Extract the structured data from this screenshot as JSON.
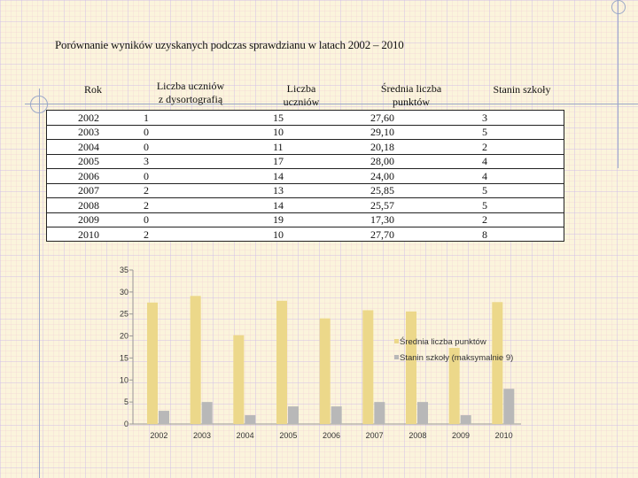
{
  "title": "Porównanie wyników uzyskanych podczas sprawdzianu w latach 2002 – 2010",
  "table": {
    "headers": {
      "rok": "Rok",
      "dysortografia_line1": "Liczba uczniów",
      "dysortografia_line2": "z dysortografią",
      "liczba_line1": "Liczba",
      "liczba_line2": "uczniów",
      "srednia_line1": "Średnia liczba",
      "srednia_line2": "punktów",
      "stanin": "Stanin szkoły"
    },
    "rows": [
      {
        "rok": "2002",
        "dys": "1",
        "liczba": "15",
        "srednia": "27,60",
        "stanin": "3"
      },
      {
        "rok": "2003",
        "dys": "0",
        "liczba": "10",
        "srednia": "29,10",
        "stanin": "5"
      },
      {
        "rok": "2004",
        "dys": "0",
        "liczba": "11",
        "srednia": "20,18",
        "stanin": "2"
      },
      {
        "rok": "2005",
        "dys": "3",
        "liczba": "17",
        "srednia": "28,00",
        "stanin": "4"
      },
      {
        "rok": "2006",
        "dys": "0",
        "liczba": "14",
        "srednia": "24,00",
        "stanin": "4"
      },
      {
        "rok": "2007",
        "dys": "2",
        "liczba": "13",
        "srednia": "25,85",
        "stanin": "5"
      },
      {
        "rok": "2008",
        "dys": "2",
        "liczba": "14",
        "srednia": "25,57",
        "stanin": "5"
      },
      {
        "rok": "2009",
        "dys": "0",
        "liczba": "19",
        "srednia": "17,30",
        "stanin": "2"
      },
      {
        "rok": "2010",
        "dys": "2",
        "liczba": "10",
        "srednia": "27,70",
        "stanin": "8"
      }
    ]
  },
  "chart_data": {
    "type": "bar",
    "categories": [
      "2002",
      "2003",
      "2004",
      "2005",
      "2006",
      "2007",
      "2008",
      "2009",
      "2010"
    ],
    "series": [
      {
        "name": "Średnia liczba punktów",
        "color": "#ecd88a",
        "values": [
          27.6,
          29.1,
          20.18,
          28.0,
          24.0,
          25.85,
          25.57,
          17.3,
          27.7
        ]
      },
      {
        "name": "Stanin szkoły (maksymalnie 9)",
        "color": "#b8b8b8",
        "values": [
          3,
          5,
          2,
          4,
          4,
          5,
          5,
          2,
          8
        ]
      }
    ],
    "ylim": [
      0,
      35
    ],
    "yticks": [
      0,
      5,
      10,
      15,
      20,
      25,
      30,
      35
    ],
    "legend_position": "right",
    "grid": false
  }
}
